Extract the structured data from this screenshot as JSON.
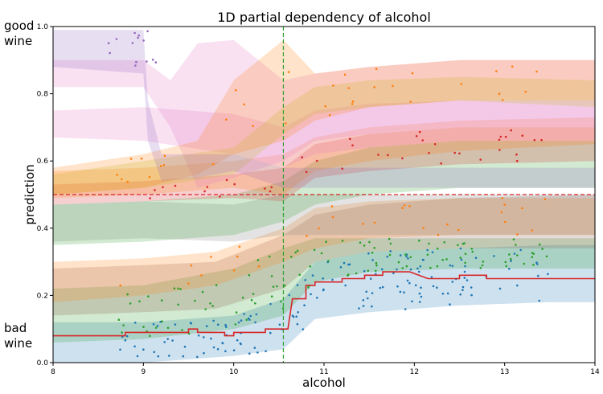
{
  "chart_data": {
    "type": "area",
    "title": "1D partial dependency of alcohol",
    "xlabel": "alcohol",
    "ylabel": "prediction",
    "xlim": [
      8,
      14
    ],
    "ylim": [
      0,
      1
    ],
    "xticks": [
      8,
      9,
      10,
      11,
      12,
      13,
      14
    ],
    "yticks": [
      0.0,
      0.2,
      0.4,
      0.6,
      0.8,
      1.0
    ],
    "top_annotation": [
      "good",
      "wine"
    ],
    "bottom_annotation": [
      "bad",
      "wine"
    ],
    "threshold_y": 0.5,
    "vertical_line_x": 10.55,
    "mean_line": {
      "color": "#d62728",
      "points": [
        [
          8.0,
          0.08
        ],
        [
          8.8,
          0.08
        ],
        [
          8.8,
          0.09
        ],
        [
          9.5,
          0.09
        ],
        [
          9.5,
          0.1
        ],
        [
          9.6,
          0.1
        ],
        [
          9.6,
          0.09
        ],
        [
          9.9,
          0.09
        ],
        [
          9.9,
          0.08
        ],
        [
          10.0,
          0.08
        ],
        [
          10.0,
          0.09
        ],
        [
          10.35,
          0.09
        ],
        [
          10.35,
          0.1
        ],
        [
          10.6,
          0.1
        ],
        [
          10.65,
          0.19
        ],
        [
          10.8,
          0.19
        ],
        [
          10.8,
          0.23
        ],
        [
          10.9,
          0.23
        ],
        [
          10.9,
          0.24
        ],
        [
          11.2,
          0.24
        ],
        [
          11.2,
          0.25
        ],
        [
          11.45,
          0.25
        ],
        [
          11.45,
          0.26
        ],
        [
          11.65,
          0.26
        ],
        [
          11.65,
          0.27
        ],
        [
          11.95,
          0.27
        ],
        [
          12.05,
          0.26
        ],
        [
          12.15,
          0.25
        ],
        [
          12.5,
          0.25
        ],
        [
          12.5,
          0.26
        ],
        [
          12.8,
          0.26
        ],
        [
          12.8,
          0.25
        ],
        [
          14.0,
          0.25
        ]
      ]
    },
    "bands": [
      {
        "color": "#1f77b4",
        "x": [
          8.0,
          9.0,
          10.0,
          10.55,
          10.9,
          11.5,
          12.5,
          13.5,
          14.0
        ],
        "lower": [
          0.0,
          0.0,
          0.02,
          0.04,
          0.13,
          0.15,
          0.17,
          0.18,
          0.18
        ],
        "upper": [
          0.12,
          0.12,
          0.14,
          0.19,
          0.3,
          0.33,
          0.34,
          0.35,
          0.35
        ]
      },
      {
        "color": "#2ca02c",
        "x": [
          8.0,
          9.0,
          10.0,
          10.55,
          10.9,
          11.5,
          12.5,
          13.5,
          14.0
        ],
        "lower": [
          0.06,
          0.07,
          0.1,
          0.14,
          0.24,
          0.27,
          0.28,
          0.28,
          0.28
        ],
        "upper": [
          0.22,
          0.23,
          0.28,
          0.34,
          0.37,
          0.37,
          0.37,
          0.37,
          0.37
        ]
      },
      {
        "color": "#8c564b",
        "x": [
          8.0,
          9.0,
          9.8,
          10.55,
          10.9,
          11.5,
          12.5,
          14.0
        ],
        "lower": [
          0.14,
          0.15,
          0.16,
          0.22,
          0.3,
          0.33,
          0.34,
          0.34
        ],
        "upper": [
          0.28,
          0.29,
          0.3,
          0.38,
          0.44,
          0.47,
          0.49,
          0.5
        ]
      },
      {
        "color": "#ff7f0e",
        "x": [
          8.0,
          9.0,
          9.8,
          10.55,
          10.9,
          11.5,
          12.5,
          14.0
        ],
        "lower": [
          0.18,
          0.2,
          0.23,
          0.3,
          0.34,
          0.37,
          0.38,
          0.38
        ],
        "upper": [
          0.3,
          0.31,
          0.33,
          0.4,
          0.46,
          0.48,
          0.49,
          0.49
        ]
      },
      {
        "color": "#7f7f7f",
        "x": [
          8.0,
          9.0,
          10.0,
          10.55,
          10.9,
          11.5,
          12.5,
          14.0
        ],
        "lower": [
          0.36,
          0.37,
          0.36,
          0.38,
          0.38,
          0.38,
          0.38,
          0.38
        ],
        "upper": [
          0.47,
          0.48,
          0.47,
          0.5,
          0.5,
          0.5,
          0.5,
          0.5
        ]
      },
      {
        "color": "#2ca02c",
        "x": [
          8.0,
          9.0,
          10.0,
          10.55,
          10.9,
          11.5,
          12.5,
          14.0
        ],
        "lower": [
          0.35,
          0.36,
          0.38,
          0.42,
          0.47,
          0.5,
          0.52,
          0.52
        ],
        "upper": [
          0.47,
          0.48,
          0.5,
          0.54,
          0.6,
          0.64,
          0.66,
          0.66
        ]
      },
      {
        "color": "#d62728",
        "x": [
          8.0,
          9.0,
          10.0,
          10.55,
          10.9,
          11.5,
          12.5,
          14.0
        ],
        "lower": [
          0.47,
          0.48,
          0.49,
          0.48,
          0.55,
          0.57,
          0.59,
          0.6
        ],
        "upper": [
          0.53,
          0.54,
          0.56,
          0.58,
          0.65,
          0.68,
          0.7,
          0.7
        ]
      },
      {
        "color": "#ff7f0e",
        "x": [
          8.0,
          9.0,
          10.0,
          10.55,
          10.9,
          11.5,
          12.5,
          14.0
        ],
        "lower": [
          0.49,
          0.5,
          0.52,
          0.5,
          0.57,
          0.6,
          0.63,
          0.65
        ],
        "upper": [
          0.57,
          0.58,
          0.6,
          0.62,
          0.67,
          0.7,
          0.72,
          0.73
        ]
      },
      {
        "color": "#e377c2",
        "x": [
          8.0,
          9.0,
          10.0,
          10.55,
          10.9,
          11.5,
          12.5,
          14.0
        ],
        "lower": [
          0.67,
          0.66,
          0.62,
          0.58,
          0.62,
          0.64,
          0.66,
          0.66
        ],
        "upper": [
          0.75,
          0.76,
          0.74,
          0.7,
          0.75,
          0.77,
          0.78,
          0.78
        ]
      },
      {
        "color": "#e377c2",
        "x": [
          8.0,
          9.0,
          9.3,
          9.6,
          10.0,
          10.55,
          10.9,
          11.5,
          12.5,
          14.0
        ],
        "lower": [
          0.82,
          0.82,
          0.7,
          0.52,
          0.55,
          0.6,
          0.66,
          0.68,
          0.7,
          0.7
        ],
        "upper": [
          0.9,
          0.9,
          0.84,
          0.95,
          0.96,
          0.84,
          0.86,
          0.88,
          0.9,
          0.9
        ]
      },
      {
        "color": "#bcbd22",
        "x": [
          8.0,
          9.0,
          10.0,
          10.55,
          10.9,
          11.5,
          12.5,
          14.0
        ],
        "lower": [
          0.5,
          0.52,
          0.56,
          0.68,
          0.74,
          0.76,
          0.78,
          0.76
        ],
        "upper": [
          0.56,
          0.6,
          0.64,
          0.76,
          0.82,
          0.84,
          0.85,
          0.84
        ]
      },
      {
        "color": "#ff7f0e",
        "x": [
          8.0,
          9.0,
          9.6,
          10.0,
          10.55,
          10.9,
          11.5,
          12.5,
          14.0
        ],
        "lower": [
          0.5,
          0.52,
          0.56,
          0.62,
          0.66,
          0.72,
          0.76,
          0.78,
          0.78
        ],
        "upper": [
          0.58,
          0.62,
          0.66,
          0.84,
          0.96,
          0.86,
          0.88,
          0.9,
          0.9
        ]
      },
      {
        "color": "#9467bd",
        "x": [
          8.0,
          9.0,
          9.05,
          9.2,
          9.6,
          10.0,
          10.55,
          10.9,
          11.5,
          14.0
        ],
        "lower": [
          0.88,
          0.86,
          0.66,
          0.54,
          0.55,
          0.57,
          0.52,
          0.52,
          0.52,
          0.52
        ],
        "upper": [
          0.99,
          0.99,
          0.78,
          0.62,
          0.62,
          0.62,
          0.58,
          0.58,
          0.58,
          0.58
        ]
      }
    ]
  }
}
